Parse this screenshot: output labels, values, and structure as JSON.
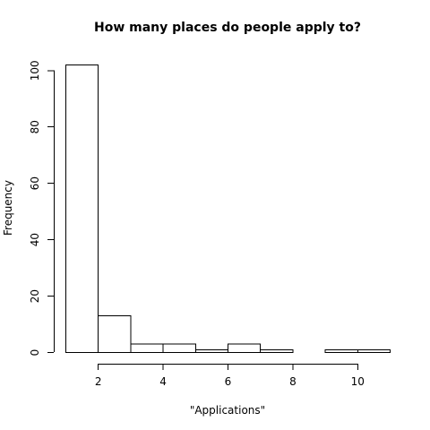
{
  "chart_data": {
    "type": "bar",
    "title": "How many places do people apply to?",
    "xlabel": "\"Applications\"",
    "ylabel": "Frequency",
    "bins": [
      [
        1,
        2
      ],
      [
        2,
        3
      ],
      [
        3,
        4
      ],
      [
        4,
        5
      ],
      [
        5,
        6
      ],
      [
        6,
        7
      ],
      [
        7,
        8
      ],
      [
        8,
        9
      ],
      [
        9,
        10
      ],
      [
        10,
        11
      ]
    ],
    "values": [
      102,
      13,
      3,
      3,
      1,
      3,
      1,
      0,
      1,
      1
    ],
    "xlim": [
      1,
      11
    ],
    "ylim": [
      0,
      102
    ],
    "xticks": [
      2,
      4,
      6,
      8,
      10
    ],
    "yticks": [
      0,
      20,
      40,
      60,
      80,
      100
    ],
    "grid": false,
    "bar_fill": "#ffffff",
    "bar_stroke": "#000000"
  }
}
